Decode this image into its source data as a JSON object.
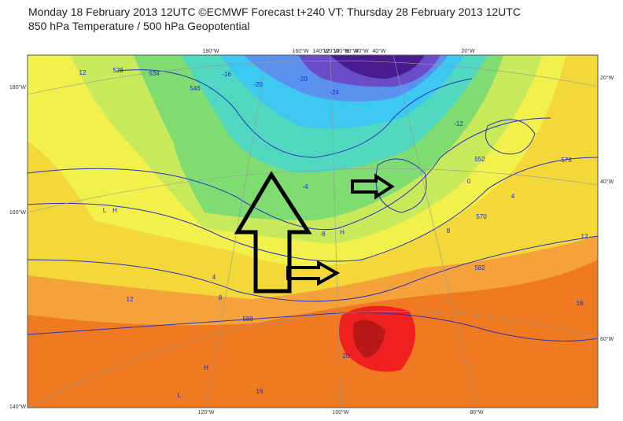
{
  "header": {
    "title": "Monday 18 February 2013 12UTC ©ECMWF Forecast t+240 VT: Thursday 28 February 2013 12UTC",
    "subtitle": "850 hPa Temperature / 500 hPa Geopotential"
  },
  "map": {
    "left_labels": [
      "180°W",
      "160°W",
      "140°W"
    ],
    "right_labels": [
      "20°W",
      "40°W",
      "60°W"
    ],
    "top_labels": [
      "180°W",
      "160°W",
      "140°W",
      "120°W",
      "100°W",
      "80°W",
      "60°W",
      "40°W",
      "20°W"
    ],
    "bottom_labels": [
      "120°W",
      "100°W",
      "80°W"
    ],
    "contour_labels": [
      "12",
      "-16",
      "-20",
      "-24",
      "-20",
      "-12",
      "-8",
      "-4",
      "0",
      "4",
      "8",
      "12",
      "16",
      "20",
      "16",
      "12",
      "8",
      "4",
      "552",
      "570",
      "582",
      "588",
      "546",
      "534",
      "528",
      "576",
      "L",
      "H",
      "H",
      "L",
      "H"
    ]
  }
}
